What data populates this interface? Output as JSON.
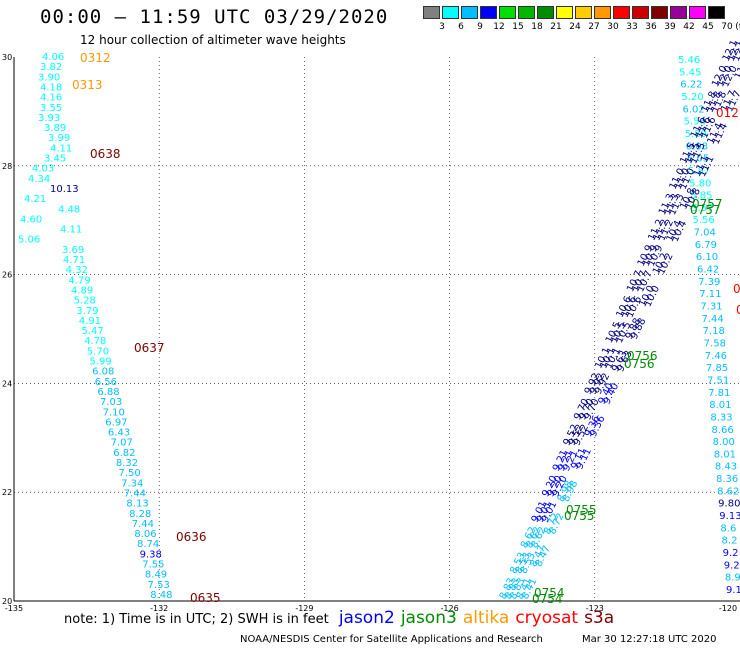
{
  "title": "00:00 – 11:59 UTC 03/29/2020",
  "subtitle": "12 hour collection of altimeter wave heights",
  "color_scale": {
    "unit_label": "(ft)",
    "bins": [
      {
        "label": "3",
        "color": "#808080"
      },
      {
        "label": "6",
        "color": "#00ffff"
      },
      {
        "label": "9",
        "color": "#00bfff"
      },
      {
        "label": "12",
        "color": "#0000ff"
      },
      {
        "label": "15",
        "color": "#00e000"
      },
      {
        "label": "18",
        "color": "#00b800"
      },
      {
        "label": "21",
        "color": "#008c00"
      },
      {
        "label": "24",
        "color": "#ffff00"
      },
      {
        "label": "27",
        "color": "#ffcc00"
      },
      {
        "label": "30",
        "color": "#ff9900"
      },
      {
        "label": "33",
        "color": "#ff0000"
      },
      {
        "label": "36",
        "color": "#cc0000"
      },
      {
        "label": "39",
        "color": "#800000"
      },
      {
        "label": "42",
        "color": "#990099"
      },
      {
        "label": "45",
        "color": "#ff00ff"
      },
      {
        "label": "70",
        "color": "#000000"
      }
    ]
  },
  "map": {
    "lon_range": [
      -135,
      -120
    ],
    "lat_range": [
      20,
      30
    ],
    "lon_ticks": [
      "-135",
      "-132",
      "-129",
      "-126",
      "-123",
      "-120"
    ],
    "lat_ticks": [
      "30",
      "28",
      "26",
      "24",
      "22",
      "20"
    ],
    "track_west_swh": [
      "4.06",
      "3.82",
      "3.90",
      "4.18",
      "4.16",
      "3.55",
      "3.93",
      "3.89",
      "3.99",
      "4.11",
      "3.45",
      "4.03",
      "4.34",
      "10.13",
      "4.21",
      "4.48",
      "4.60",
      "4.11",
      "5.06",
      "3.69",
      "4.71",
      "4.32",
      "4.79",
      "4.89",
      "5.28",
      "3.79",
      "4.91",
      "5.47",
      "4.78",
      "5.70",
      "5.99",
      "6.08",
      "6.56",
      "6.88",
      "7.03",
      "7.10",
      "6.97",
      "6.43",
      "7.07",
      "6.82",
      "8.32",
      "7.50",
      "7.34",
      "7.44",
      "8.13",
      "8.28",
      "7.44",
      "8.06",
      "8.74",
      "9.38",
      "7.55",
      "8.49",
      "7.53",
      "8.48"
    ],
    "track_east_swh": [
      "5.46",
      "5.45",
      "6.22",
      "5.20",
      "6.02",
      "5.56",
      "5.89",
      "6.08",
      "6.05",
      "5.87",
      "5.80",
      "5.85",
      "5.57",
      "5.56",
      "7.04",
      "6.79",
      "6.10",
      "6.42",
      "7.39",
      "7.11",
      "7.31",
      "7.44",
      "7.18",
      "7.58",
      "7.46",
      "7.85",
      "7.51",
      "7.81",
      "8.01",
      "8.33",
      "8.66",
      "8.00",
      "8.01",
      "8.43",
      "8.36",
      "8.62",
      "9.80",
      "9.13",
      "8.6",
      "8.2",
      "9.2",
      "9.2",
      "8.9",
      "9.1"
    ],
    "diag_swh_a": [
      "8.83",
      "8.53",
      "8.62",
      "9.01",
      "9.20",
      "9.21",
      "9.52",
      "9.70",
      "9.92",
      "10.1",
      "10.5",
      "10.6",
      "10.7",
      "10.9",
      "11.2",
      "11.3",
      "11.0",
      "11.5",
      "11.6",
      "11.8",
      "12.0",
      "12.1"
    ],
    "diag_swh_b": [
      "8.41",
      "8.47",
      "8.72",
      "8.98",
      "9.11",
      "9.36",
      "9.40",
      "9.63",
      "9.88",
      "10.0",
      "10.2",
      "10.4",
      "10.8",
      "11.1",
      "11.4",
      "11.7",
      "11.9"
    ],
    "time_labels": [
      {
        "text": "0312",
        "color": "#ff9900"
      },
      {
        "text": "0313",
        "color": "#ff9900"
      },
      {
        "text": "0638",
        "color": "#800000"
      },
      {
        "text": "0637",
        "color": "#800000"
      },
      {
        "text": "0636",
        "color": "#800000"
      },
      {
        "text": "0635",
        "color": "#800000"
      },
      {
        "text": "012",
        "color": "#ff0000"
      },
      {
        "text": "0",
        "color": "#ff0000"
      },
      {
        "text": "0",
        "color": "#ff0000"
      },
      {
        "text": "0757",
        "color": "#008c00"
      },
      {
        "text": "0757",
        "color": "#008c00"
      },
      {
        "text": "0756",
        "color": "#008c00"
      },
      {
        "text": "0756",
        "color": "#008c00"
      },
      {
        "text": "0755",
        "color": "#008c00"
      },
      {
        "text": "0755",
        "color": "#008c00"
      },
      {
        "text": "0754",
        "color": "#008c00"
      },
      {
        "text": "0754",
        "color": "#008c00"
      }
    ]
  },
  "note": "note:  1) Time is in UTC; 2) SWH is in feet",
  "satellites": [
    {
      "name": "jason2",
      "color": "#0000ff"
    },
    {
      "name": "jason3",
      "color": "#008c00"
    },
    {
      "name": "altika",
      "color": "#ff9900"
    },
    {
      "name": "cryosat",
      "color": "#ff0000"
    },
    {
      "name": "s3a",
      "color": "#800000"
    }
  ],
  "credit": "NOAA/NESDIS Center for Satellite Applications and Research",
  "timestamp": "Mar 30 12:27:18 UTC 2020"
}
